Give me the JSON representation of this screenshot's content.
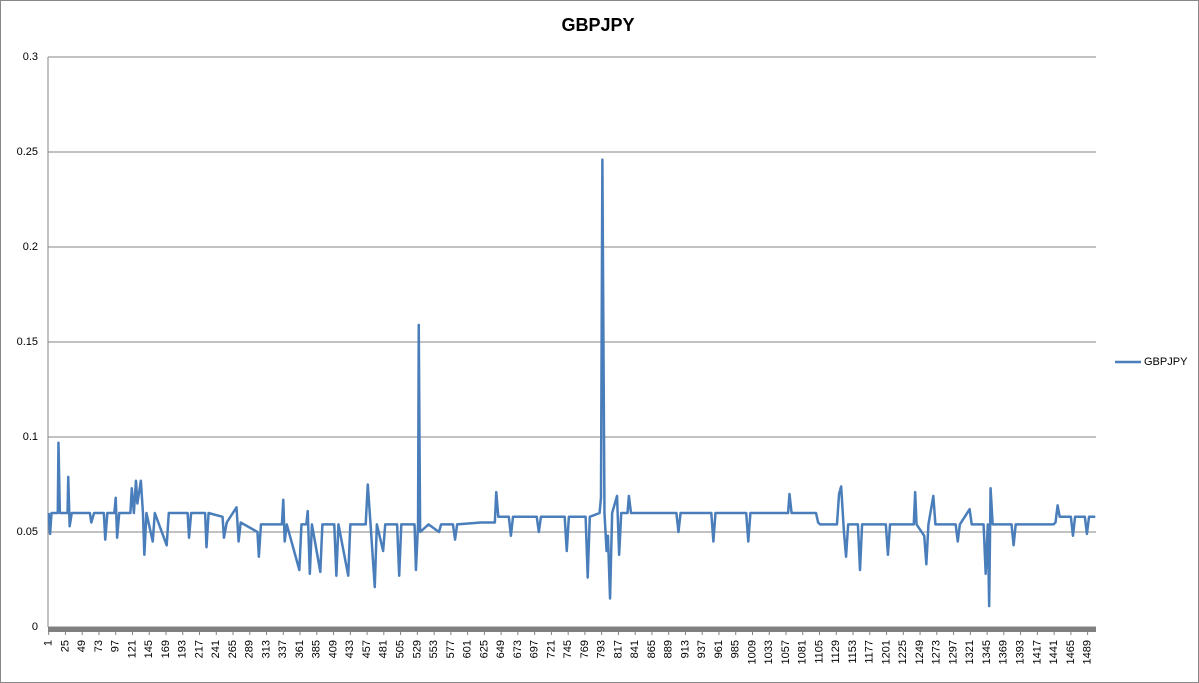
{
  "chart_data": {
    "type": "line",
    "title": "GBPJPY",
    "x": [
      1,
      3,
      5,
      14,
      15,
      17,
      28,
      29,
      31,
      34,
      60,
      62,
      66,
      80,
      82,
      85,
      95,
      97,
      99,
      102,
      118,
      120,
      123,
      126,
      128,
      133,
      136,
      138,
      141,
      150,
      153,
      170,
      173,
      200,
      202,
      205,
      225,
      227,
      230,
      250,
      252,
      256,
      270,
      273,
      276,
      300,
      302,
      305,
      335,
      337,
      339,
      342,
      360,
      363,
      370,
      372,
      375,
      378,
      390,
      393,
      410,
      413,
      416,
      430,
      433,
      455,
      458,
      462,
      468,
      471,
      480,
      483,
      500,
      503,
      506,
      525,
      527,
      530,
      531,
      533,
      545,
      560,
      563,
      580,
      583,
      586,
      620,
      640,
      642,
      645,
      660,
      663,
      666,
      700,
      703,
      706,
      740,
      743,
      746,
      770,
      773,
      776,
      790,
      792,
      794,
      797,
      800,
      802,
      805,
      808,
      815,
      818,
      821,
      830,
      832,
      835,
      870,
      900,
      903,
      906,
      950,
      953,
      956,
      1000,
      1003,
      1006,
      1060,
      1062,
      1065,
      1100,
      1103,
      1106,
      1130,
      1133,
      1136,
      1140,
      1143,
      1146,
      1160,
      1163,
      1166,
      1200,
      1203,
      1206,
      1240,
      1242,
      1244,
      1255,
      1258,
      1261,
      1268,
      1271,
      1300,
      1303,
      1306,
      1320,
      1323,
      1340,
      1343,
      1346,
      1348,
      1350,
      1353,
      1380,
      1383,
      1386,
      1440,
      1443,
      1446,
      1449,
      1465,
      1468,
      1471,
      1485,
      1488,
      1491,
      1500
    ],
    "series": [
      {
        "name": "GBPJPY",
        "color": "#4a7ebb",
        "values": [
          0.06,
          0.049,
          0.06,
          0.06,
          0.097,
          0.06,
          0.06,
          0.079,
          0.053,
          0.06,
          0.06,
          0.055,
          0.06,
          0.06,
          0.046,
          0.06,
          0.06,
          0.068,
          0.047,
          0.06,
          0.06,
          0.073,
          0.06,
          0.077,
          0.065,
          0.077,
          0.06,
          0.038,
          0.06,
          0.045,
          0.06,
          0.043,
          0.06,
          0.06,
          0.047,
          0.06,
          0.06,
          0.042,
          0.06,
          0.058,
          0.047,
          0.055,
          0.063,
          0.045,
          0.055,
          0.05,
          0.037,
          0.054,
          0.054,
          0.067,
          0.045,
          0.054,
          0.03,
          0.054,
          0.054,
          0.061,
          0.028,
          0.054,
          0.029,
          0.054,
          0.054,
          0.027,
          0.054,
          0.027,
          0.054,
          0.054,
          0.075,
          0.054,
          0.021,
          0.054,
          0.04,
          0.054,
          0.054,
          0.027,
          0.054,
          0.054,
          0.03,
          0.054,
          0.159,
          0.05,
          0.054,
          0.05,
          0.054,
          0.054,
          0.046,
          0.054,
          0.055,
          0.055,
          0.071,
          0.058,
          0.058,
          0.048,
          0.058,
          0.058,
          0.05,
          0.058,
          0.058,
          0.04,
          0.058,
          0.058,
          0.026,
          0.058,
          0.06,
          0.068,
          0.246,
          0.06,
          0.04,
          0.048,
          0.015,
          0.06,
          0.069,
          0.038,
          0.06,
          0.06,
          0.069,
          0.06,
          0.06,
          0.06,
          0.05,
          0.06,
          0.06,
          0.045,
          0.06,
          0.06,
          0.045,
          0.06,
          0.06,
          0.07,
          0.06,
          0.06,
          0.055,
          0.054,
          0.054,
          0.07,
          0.074,
          0.05,
          0.037,
          0.054,
          0.054,
          0.03,
          0.054,
          0.054,
          0.038,
          0.054,
          0.054,
          0.071,
          0.054,
          0.048,
          0.033,
          0.054,
          0.069,
          0.054,
          0.054,
          0.045,
          0.054,
          0.062,
          0.054,
          0.054,
          0.028,
          0.054,
          0.011,
          0.073,
          0.054,
          0.054,
          0.043,
          0.054,
          0.054,
          0.055,
          0.064,
          0.058,
          0.058,
          0.048,
          0.058,
          0.058,
          0.049,
          0.058,
          0.058
        ]
      }
    ],
    "xlim": [
      0,
      1501
    ],
    "xticks": [
      1,
      25,
      49,
      73,
      97,
      121,
      145,
      169,
      193,
      217,
      241,
      265,
      289,
      313,
      337,
      361,
      385,
      409,
      433,
      457,
      481,
      505,
      529,
      553,
      577,
      601,
      625,
      649,
      673,
      697,
      721,
      745,
      769,
      793,
      817,
      841,
      865,
      889,
      913,
      937,
      961,
      985,
      1009,
      1033,
      1057,
      1081,
      1105,
      1129,
      1153,
      1177,
      1201,
      1225,
      1249,
      1273,
      1297,
      1321,
      1345,
      1369,
      1393,
      1417,
      1441,
      1465,
      1489
    ],
    "ylim": [
      0,
      0.3
    ],
    "yticks": [
      0,
      0.05,
      0.1,
      0.15,
      0.2,
      0.25,
      0.3
    ],
    "grid": true,
    "legend": "right"
  }
}
